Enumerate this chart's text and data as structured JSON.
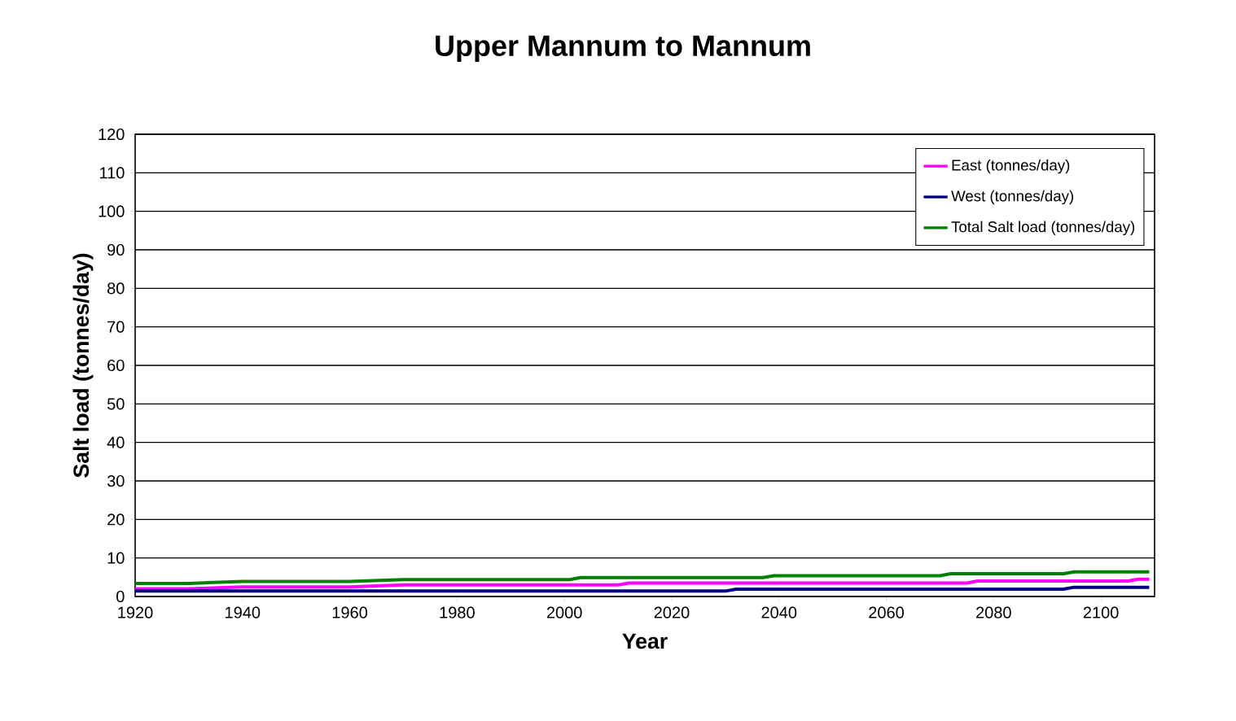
{
  "chart_data": {
    "type": "line",
    "title": "Upper Mannum to Mannum",
    "xlabel": "Year",
    "ylabel": "Salt load  (tonnes/day)",
    "xlim": [
      1920,
      2110
    ],
    "xticks": [
      1920,
      1940,
      1960,
      1980,
      2000,
      2020,
      2040,
      2060,
      2080,
      2100
    ],
    "ylim": [
      0,
      120
    ],
    "yticks": [
      0,
      10,
      20,
      30,
      40,
      50,
      60,
      70,
      80,
      90,
      100,
      110,
      120
    ],
    "grid": "y",
    "legend": "top right",
    "marker": "none",
    "line_style": "solid",
    "series": [
      {
        "name": "East (tonnes/day)",
        "color": "#ff00ff",
        "x": [
          1920,
          1930,
          1940,
          1960,
          1970,
          2010,
          2012,
          2075,
          2077,
          2105,
          2107,
          2109
        ],
        "values": [
          2.0,
          2.0,
          2.5,
          2.5,
          3.0,
          3.0,
          3.5,
          3.5,
          4.0,
          4.0,
          4.5,
          4.5
        ]
      },
      {
        "name": "West (tonnes/day)",
        "color": "#000080",
        "x": [
          1920,
          2030,
          2032,
          2093,
          2095,
          2109
        ],
        "values": [
          1.4,
          1.4,
          1.9,
          1.9,
          2.4,
          2.4
        ]
      },
      {
        "name": "Total Salt load (tonnes/day)",
        "color": "#008000",
        "x": [
          1920,
          1930,
          1940,
          1960,
          1970,
          2001,
          2003,
          2037,
          2039,
          2070,
          2072,
          2093,
          2095,
          2109
        ],
        "values": [
          3.4,
          3.4,
          3.9,
          3.9,
          4.4,
          4.4,
          4.9,
          4.9,
          5.4,
          5.4,
          5.9,
          5.9,
          6.4,
          6.4
        ]
      }
    ]
  }
}
